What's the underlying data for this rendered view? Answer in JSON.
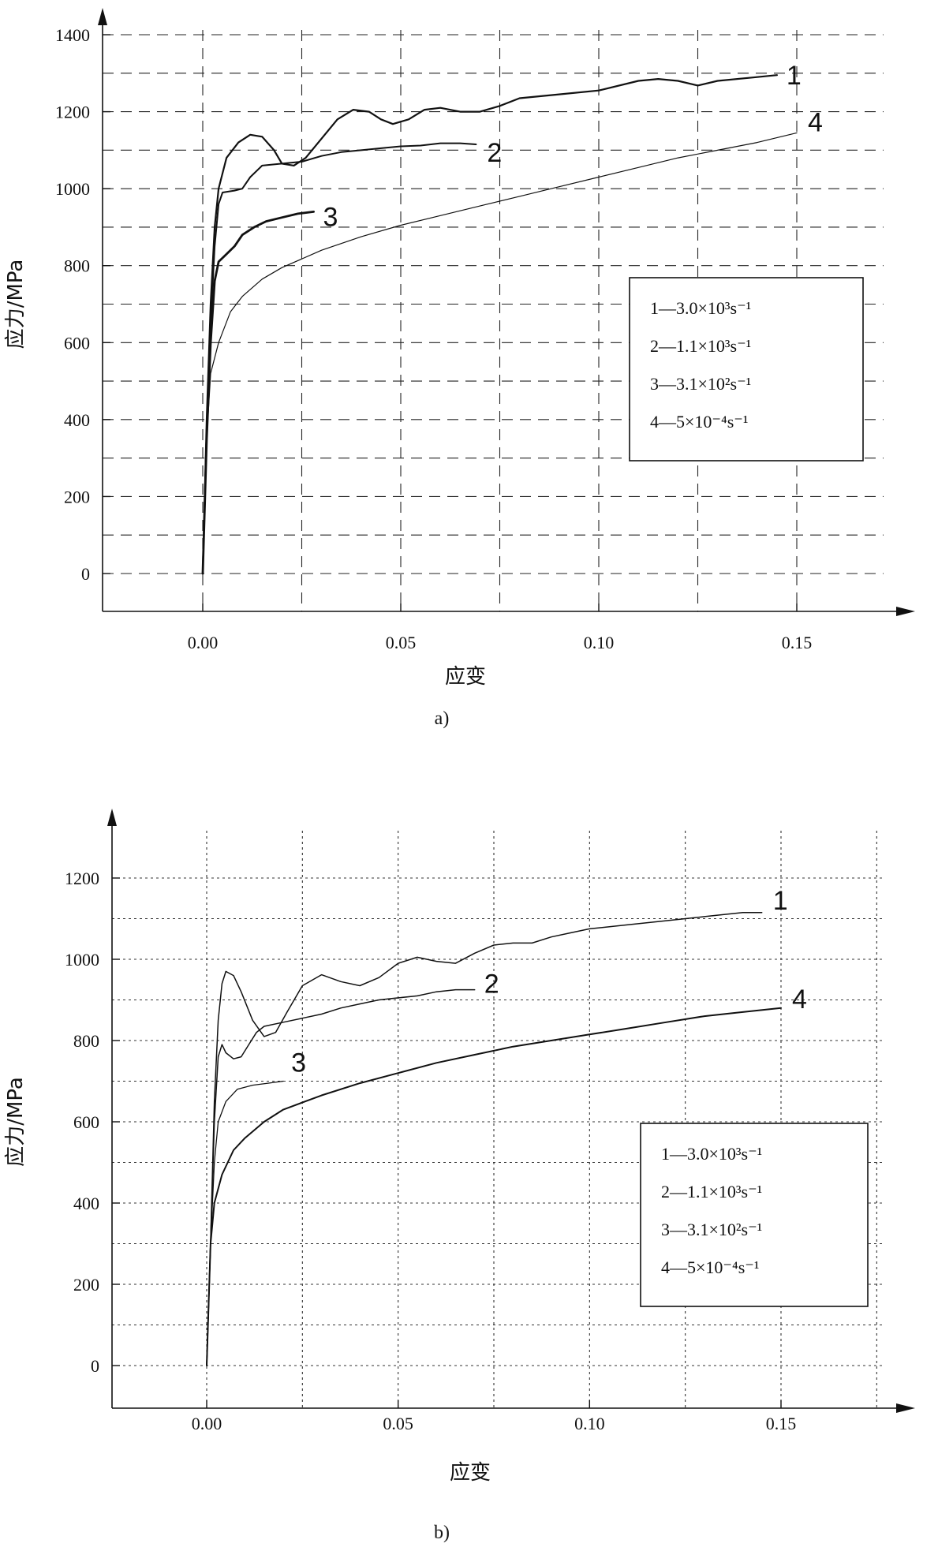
{
  "chart_data": [
    {
      "type": "line",
      "caption": "a)",
      "xlabel": "应变",
      "ylabel": "应力/MPa",
      "xlim": [
        -0.025,
        0.185
      ],
      "ylim": [
        -100,
        1430
      ],
      "xticks": [
        "0.00",
        "0.05",
        "0.10",
        "0.15"
      ],
      "xtick_values": [
        0,
        0.05,
        0.1,
        0.15
      ],
      "yticks": [
        "0",
        "200",
        "400",
        "600",
        "800",
        "1000",
        "1200",
        "1400"
      ],
      "ytick_values": [
        0,
        200,
        400,
        600,
        800,
        1000,
        1200,
        1400
      ],
      "grid": "dashed",
      "legend_position": "right-center",
      "series": [
        {
          "label": "1",
          "legend": "1—3.0×10³s⁻¹",
          "points": [
            [
              0,
              0
            ],
            [
              0.001,
              400
            ],
            [
              0.002,
              700
            ],
            [
              0.003,
              900
            ],
            [
              0.004,
              1000
            ],
            [
              0.006,
              1080
            ],
            [
              0.009,
              1120
            ],
            [
              0.012,
              1140
            ],
            [
              0.015,
              1135
            ],
            [
              0.018,
              1100
            ],
            [
              0.02,
              1065
            ],
            [
              0.023,
              1060
            ],
            [
              0.026,
              1080
            ],
            [
              0.03,
              1130
            ],
            [
              0.034,
              1180
            ],
            [
              0.038,
              1205
            ],
            [
              0.042,
              1200
            ],
            [
              0.045,
              1180
            ],
            [
              0.048,
              1168
            ],
            [
              0.052,
              1180
            ],
            [
              0.056,
              1205
            ],
            [
              0.06,
              1210
            ],
            [
              0.065,
              1200
            ],
            [
              0.07,
              1200
            ],
            [
              0.075,
              1215
            ],
            [
              0.08,
              1235
            ],
            [
              0.09,
              1245
            ],
            [
              0.1,
              1255
            ],
            [
              0.11,
              1280
            ],
            [
              0.115,
              1285
            ],
            [
              0.12,
              1280
            ],
            [
              0.125,
              1268
            ],
            [
              0.13,
              1280
            ],
            [
              0.14,
              1290
            ],
            [
              0.145,
              1295
            ]
          ]
        },
        {
          "label": "2",
          "legend": "2—1.1×10³s⁻¹",
          "points": [
            [
              0,
              0
            ],
            [
              0.001,
              380
            ],
            [
              0.002,
              650
            ],
            [
              0.003,
              850
            ],
            [
              0.004,
              960
            ],
            [
              0.005,
              990
            ],
            [
              0.008,
              995
            ],
            [
              0.01,
              1000
            ],
            [
              0.012,
              1030
            ],
            [
              0.015,
              1060
            ],
            [
              0.02,
              1065
            ],
            [
              0.025,
              1070
            ],
            [
              0.03,
              1085
            ],
            [
              0.035,
              1095
            ],
            [
              0.04,
              1100
            ],
            [
              0.045,
              1105
            ],
            [
              0.05,
              1110
            ],
            [
              0.055,
              1112
            ],
            [
              0.06,
              1118
            ],
            [
              0.065,
              1118
            ],
            [
              0.069,
              1115
            ]
          ]
        },
        {
          "label": "3",
          "legend": "3—3.1×10²s⁻¹",
          "points": [
            [
              0,
              0
            ],
            [
              0.001,
              350
            ],
            [
              0.002,
              600
            ],
            [
              0.003,
              760
            ],
            [
              0.004,
              810
            ],
            [
              0.006,
              830
            ],
            [
              0.008,
              850
            ],
            [
              0.01,
              880
            ],
            [
              0.013,
              900
            ],
            [
              0.016,
              915
            ],
            [
              0.02,
              925
            ],
            [
              0.024,
              935
            ],
            [
              0.028,
              940
            ]
          ]
        },
        {
          "label": "4",
          "legend": "4—5×10⁻⁴s⁻¹",
          "points": [
            [
              0,
              0
            ],
            [
              0.001,
              350
            ],
            [
              0.002,
              520
            ],
            [
              0.004,
              600
            ],
            [
              0.007,
              680
            ],
            [
              0.01,
              720
            ],
            [
              0.015,
              765
            ],
            [
              0.02,
              795
            ],
            [
              0.03,
              840
            ],
            [
              0.04,
              875
            ],
            [
              0.05,
              905
            ],
            [
              0.06,
              930
            ],
            [
              0.07,
              955
            ],
            [
              0.08,
              980
            ],
            [
              0.09,
              1005
            ],
            [
              0.1,
              1030
            ],
            [
              0.11,
              1055
            ],
            [
              0.12,
              1080
            ],
            [
              0.13,
              1100
            ],
            [
              0.14,
              1120
            ],
            [
              0.15,
              1145
            ]
          ]
        }
      ]
    },
    {
      "type": "line",
      "caption": "b)",
      "xlabel": "应变",
      "ylabel": "应力/MPa",
      "xlim": [
        -0.025,
        0.185
      ],
      "ylim": [
        -100,
        1320
      ],
      "xticks": [
        "0.00",
        "0.05",
        "0.10",
        "0.15"
      ],
      "xtick_values": [
        0,
        0.05,
        0.1,
        0.15
      ],
      "yticks": [
        "0",
        "200",
        "400",
        "600",
        "800",
        "1000",
        "1200"
      ],
      "ytick_values": [
        0,
        200,
        400,
        600,
        800,
        1000,
        1200
      ],
      "grid": "dotted",
      "legend_position": "right-center",
      "series": [
        {
          "label": "1",
          "legend": "1—3.0×10³s⁻¹",
          "points": [
            [
              0,
              0
            ],
            [
              0.001,
              300
            ],
            [
              0.002,
              650
            ],
            [
              0.003,
              850
            ],
            [
              0.004,
              940
            ],
            [
              0.005,
              970
            ],
            [
              0.007,
              960
            ],
            [
              0.009,
              920
            ],
            [
              0.012,
              850
            ],
            [
              0.015,
              810
            ],
            [
              0.018,
              820
            ],
            [
              0.021,
              870
            ],
            [
              0.025,
              935
            ],
            [
              0.03,
              962
            ],
            [
              0.035,
              945
            ],
            [
              0.04,
              935
            ],
            [
              0.045,
              955
            ],
            [
              0.05,
              990
            ],
            [
              0.055,
              1005
            ],
            [
              0.06,
              995
            ],
            [
              0.065,
              990
            ],
            [
              0.07,
              1015
            ],
            [
              0.075,
              1035
            ],
            [
              0.08,
              1040
            ],
            [
              0.085,
              1040
            ],
            [
              0.09,
              1055
            ],
            [
              0.095,
              1065
            ],
            [
              0.1,
              1075
            ],
            [
              0.11,
              1085
            ],
            [
              0.12,
              1095
            ],
            [
              0.13,
              1105
            ],
            [
              0.14,
              1115
            ],
            [
              0.145,
              1115
            ]
          ]
        },
        {
          "label": "2",
          "legend": "2—1.1×10³s⁻¹",
          "points": [
            [
              0,
              0
            ],
            [
              0.001,
              300
            ],
            [
              0.002,
              600
            ],
            [
              0.003,
              760
            ],
            [
              0.004,
              790
            ],
            [
              0.005,
              770
            ],
            [
              0.007,
              755
            ],
            [
              0.009,
              760
            ],
            [
              0.011,
              790
            ],
            [
              0.013,
              820
            ],
            [
              0.015,
              835
            ],
            [
              0.02,
              845
            ],
            [
              0.025,
              855
            ],
            [
              0.03,
              865
            ],
            [
              0.035,
              880
            ],
            [
              0.04,
              890
            ],
            [
              0.045,
              900
            ],
            [
              0.05,
              905
            ],
            [
              0.055,
              910
            ],
            [
              0.06,
              920
            ],
            [
              0.065,
              925
            ],
            [
              0.07,
              925
            ]
          ]
        },
        {
          "label": "3",
          "legend": "3—3.1×10²s⁻¹",
          "points": [
            [
              0,
              0
            ],
            [
              0.001,
              300
            ],
            [
              0.002,
              500
            ],
            [
              0.003,
              600
            ],
            [
              0.005,
              650
            ],
            [
              0.008,
              680
            ],
            [
              0.012,
              690
            ],
            [
              0.016,
              695
            ],
            [
              0.02,
              700
            ]
          ]
        },
        {
          "label": "4",
          "legend": "4—5×10⁻⁴s⁻¹",
          "points": [
            [
              0,
              0
            ],
            [
              0.001,
              300
            ],
            [
              0.002,
              400
            ],
            [
              0.004,
              470
            ],
            [
              0.007,
              530
            ],
            [
              0.01,
              560
            ],
            [
              0.015,
              600
            ],
            [
              0.02,
              630
            ],
            [
              0.03,
              665
            ],
            [
              0.04,
              695
            ],
            [
              0.05,
              720
            ],
            [
              0.06,
              745
            ],
            [
              0.07,
              765
            ],
            [
              0.08,
              785
            ],
            [
              0.09,
              800
            ],
            [
              0.1,
              815
            ],
            [
              0.11,
              830
            ],
            [
              0.12,
              845
            ],
            [
              0.13,
              860
            ],
            [
              0.14,
              870
            ],
            [
              0.15,
              880
            ]
          ]
        }
      ]
    }
  ]
}
